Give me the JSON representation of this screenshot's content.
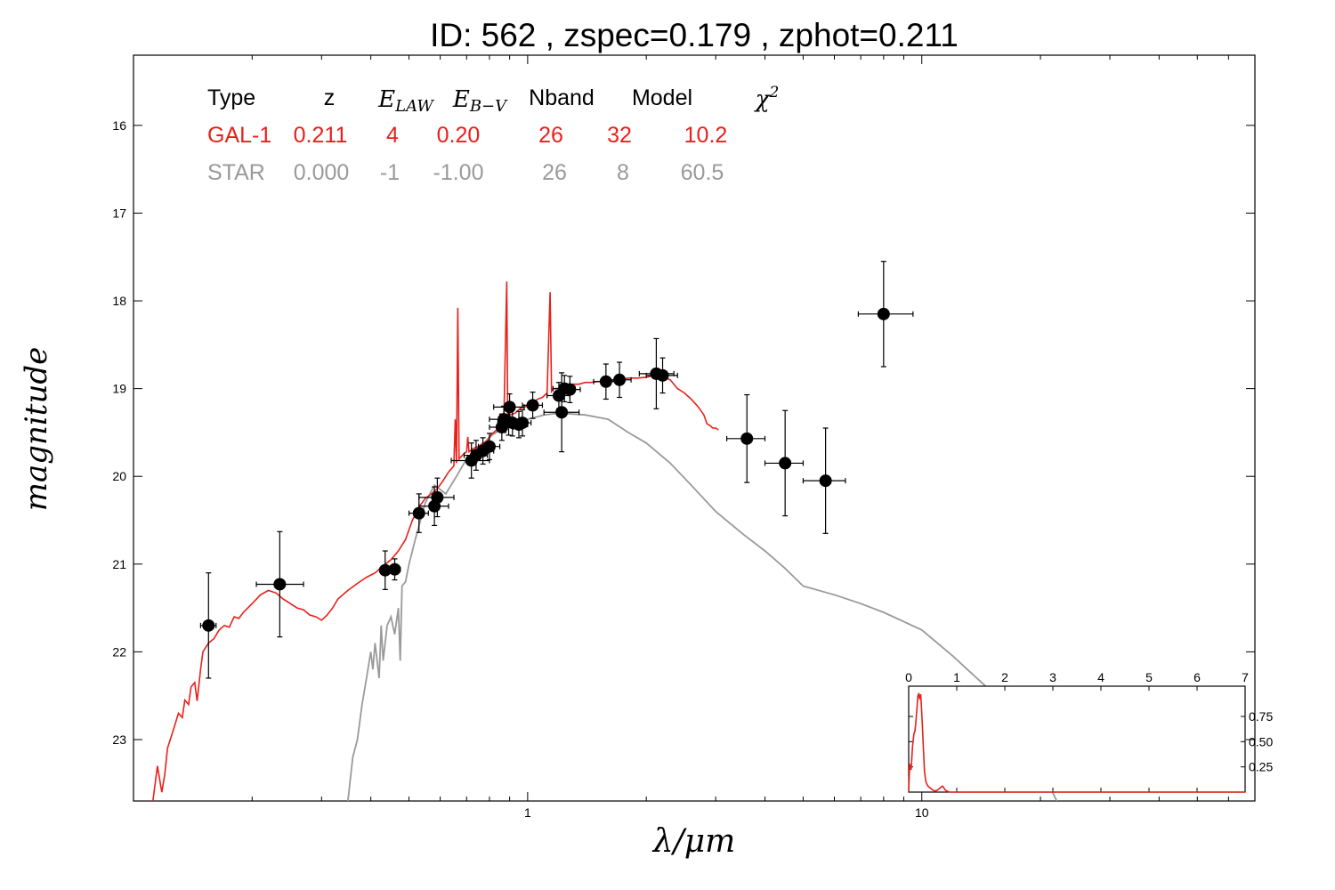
{
  "chart_data": {
    "type": "scatter",
    "title": "ID:  562   , zspec=0.179 , zphot=0.211",
    "xlabel": "λ/μm",
    "ylabel": "magnitude",
    "xscale": "log",
    "xlim": [
      0.1,
      70
    ],
    "ylim": [
      23.7,
      15.2
    ],
    "y_inverted": true,
    "x_tick_labels": [
      {
        "value": 1,
        "label": "1"
      },
      {
        "value": 10,
        "label": "10"
      }
    ],
    "y_tick_labels": [
      "16",
      "17",
      "18",
      "19",
      "20",
      "21",
      "22",
      "23"
    ],
    "legend_table": {
      "headers": [
        "Type",
        "z",
        "E_LAW",
        "E_B−V",
        "Nband",
        "Model",
        "χ²"
      ],
      "rows": [
        {
          "type": "GAL-1",
          "z": "0.211",
          "elaw": "4",
          "ebv": "0.20",
          "nband": "26",
          "model": "32",
          "chi2": "10.2",
          "color": "#e8201a"
        },
        {
          "type": "STAR",
          "z": "0.000",
          "elaw": "-1",
          "ebv": "-1.00",
          "nband": "26",
          "model": "8",
          "chi2": "60.5",
          "color": "#9a9a9a"
        }
      ]
    },
    "points": [
      {
        "x": 0.155,
        "y": 21.7,
        "xerr": [
          0.148,
          0.162
        ],
        "yerr": 0.6
      },
      {
        "x": 0.235,
        "y": 21.23,
        "xerr": [
          0.205,
          0.27
        ],
        "yerr": 0.6
      },
      {
        "x": 0.435,
        "y": 21.07,
        "xerr": [
          0.425,
          0.445
        ],
        "yerr": 0.22
      },
      {
        "x": 0.46,
        "y": 21.06,
        "xerr": [
          0.45,
          0.475
        ],
        "yerr": 0.12
      },
      {
        "x": 0.53,
        "y": 20.42,
        "xerr": [
          0.5,
          0.56
        ],
        "yerr": 0.22
      },
      {
        "x": 0.58,
        "y": 20.34,
        "xerr": [
          0.53,
          0.63
        ],
        "yerr": 0.22
      },
      {
        "x": 0.59,
        "y": 20.24,
        "xerr": [
          0.53,
          0.65
        ],
        "yerr": 0.22
      },
      {
        "x": 0.72,
        "y": 19.82,
        "xerr": [
          0.64,
          0.8
        ],
        "yerr": 0.2
      },
      {
        "x": 0.74,
        "y": 19.76,
        "xerr": [
          0.69,
          0.79
        ],
        "yerr": 0.17
      },
      {
        "x": 0.77,
        "y": 19.71,
        "xerr": [
          0.72,
          0.82
        ],
        "yerr": 0.15
      },
      {
        "x": 0.8,
        "y": 19.66,
        "xerr": [
          0.75,
          0.85
        ],
        "yerr": 0.15
      },
      {
        "x": 0.86,
        "y": 19.44,
        "xerr": [
          0.8,
          0.92
        ],
        "yerr": 0.15
      },
      {
        "x": 0.87,
        "y": 19.35,
        "xerr": [
          0.8,
          0.95
        ],
        "yerr": 0.15
      },
      {
        "x": 0.895,
        "y": 19.38,
        "xerr": [
          0.84,
          0.95
        ],
        "yerr": 0.15
      },
      {
        "x": 0.9,
        "y": 19.21,
        "xerr": [
          0.82,
          0.98
        ],
        "yerr": 0.15
      },
      {
        "x": 0.915,
        "y": 19.39,
        "xerr": [
          0.87,
          0.96
        ],
        "yerr": 0.15
      },
      {
        "x": 0.95,
        "y": 19.41,
        "xerr": [
          0.9,
          1.0
        ],
        "yerr": 0.15
      },
      {
        "x": 0.97,
        "y": 19.39,
        "xerr": [
          0.92,
          1.02
        ],
        "yerr": 0.15
      },
      {
        "x": 1.03,
        "y": 19.19,
        "xerr": [
          0.97,
          1.09
        ],
        "yerr": 0.15
      },
      {
        "x": 1.2,
        "y": 19.08,
        "xerr": [
          1.12,
          1.28
        ],
        "yerr": 0.15
      },
      {
        "x": 1.22,
        "y": 19.27,
        "xerr": [
          1.1,
          1.35
        ],
        "yerr": 0.45
      },
      {
        "x": 1.24,
        "y": 19.0,
        "xerr": [
          1.16,
          1.32
        ],
        "yerr": 0.15
      },
      {
        "x": 1.28,
        "y": 19.01,
        "xerr": [
          1.2,
          1.36
        ],
        "yerr": 0.15
      },
      {
        "x": 1.58,
        "y": 18.92,
        "xerr": [
          1.47,
          1.7
        ],
        "yerr": 0.2
      },
      {
        "x": 1.71,
        "y": 18.9,
        "xerr": [
          1.6,
          1.83
        ],
        "yerr": 0.2
      },
      {
        "x": 2.12,
        "y": 18.83,
        "xerr": [
          1.92,
          2.35
        ],
        "yerr": 0.4
      },
      {
        "x": 2.2,
        "y": 18.85,
        "xerr": [
          2.0,
          2.4
        ],
        "yerr": 0.2
      },
      {
        "x": 3.6,
        "y": 19.57,
        "xerr": [
          3.2,
          4.0
        ],
        "yerr": 0.5
      },
      {
        "x": 4.5,
        "y": 19.85,
        "xerr": [
          4.0,
          5.0
        ],
        "yerr": 0.6
      },
      {
        "x": 5.7,
        "y": 20.05,
        "xerr": [
          5.0,
          6.4
        ],
        "yerr": 0.6
      },
      {
        "x": 8.0,
        "y": 18.15,
        "xerr": [
          6.9,
          9.5
        ],
        "yerr": 0.6
      }
    ],
    "series": [
      {
        "color": "#e8201a",
        "x": [
          0.112,
          0.115,
          0.118,
          0.12,
          0.122,
          0.125,
          0.128,
          0.13,
          0.133,
          0.135,
          0.138,
          0.14,
          0.143,
          0.145,
          0.148,
          0.15,
          0.155,
          0.16,
          0.165,
          0.17,
          0.175,
          0.18,
          0.185,
          0.19,
          0.2,
          0.21,
          0.22,
          0.23,
          0.24,
          0.25,
          0.26,
          0.27,
          0.28,
          0.29,
          0.3,
          0.31,
          0.32,
          0.33,
          0.35,
          0.37,
          0.39,
          0.41,
          0.43,
          0.45,
          0.47,
          0.49,
          0.51,
          0.53,
          0.55,
          0.57,
          0.59,
          0.61,
          0.63,
          0.65,
          0.655,
          0.66,
          0.665,
          0.67,
          0.69,
          0.7,
          0.705,
          0.71,
          0.73,
          0.75,
          0.77,
          0.79,
          0.81,
          0.83,
          0.85,
          0.87,
          0.885,
          0.89,
          0.895,
          0.9,
          0.93,
          0.96,
          1.0,
          1.03,
          1.06,
          1.09,
          1.12,
          1.14,
          1.15,
          1.16,
          1.18,
          1.2,
          1.22,
          1.25,
          1.28,
          1.3,
          1.35,
          1.4,
          1.45,
          1.5,
          1.55,
          1.6,
          1.7,
          1.8,
          1.9,
          2.0,
          2.1,
          2.2,
          2.3,
          2.4,
          2.5,
          2.6,
          2.7,
          2.8,
          2.85,
          2.9,
          2.95,
          3.0,
          3.05
        ],
        "y": [
          23.7,
          23.3,
          23.6,
          23.4,
          23.1,
          22.95,
          22.8,
          22.7,
          22.75,
          22.55,
          22.6,
          22.4,
          22.35,
          22.56,
          22.2,
          22.0,
          21.9,
          21.85,
          21.75,
          21.7,
          21.72,
          21.6,
          21.62,
          21.55,
          21.45,
          21.35,
          21.3,
          21.33,
          21.4,
          21.45,
          21.5,
          21.52,
          21.58,
          21.6,
          21.64,
          21.58,
          21.5,
          21.4,
          21.3,
          21.22,
          21.15,
          21.1,
          21.02,
          20.95,
          20.85,
          20.72,
          20.5,
          20.35,
          20.25,
          20.2,
          20.14,
          20.05,
          19.95,
          19.88,
          19.35,
          19.85,
          18.08,
          19.8,
          19.74,
          19.72,
          19.55,
          19.72,
          19.68,
          19.66,
          19.62,
          19.6,
          19.52,
          19.48,
          19.44,
          19.38,
          17.78,
          19.36,
          19.34,
          19.3,
          19.28,
          19.22,
          19.2,
          19.16,
          19.12,
          19.1,
          19.05,
          17.9,
          19.03,
          19.0,
          19.0,
          19.0,
          18.98,
          18.98,
          18.98,
          18.95,
          18.95,
          18.93,
          18.93,
          18.92,
          18.92,
          18.92,
          18.9,
          18.88,
          18.88,
          18.87,
          18.85,
          18.87,
          18.9,
          19.0,
          19.05,
          19.12,
          19.2,
          19.3,
          19.4,
          19.42,
          19.45,
          19.45,
          19.47
        ]
      },
      {
        "color": "#9a9a9a",
        "x": [
          0.35,
          0.36,
          0.37,
          0.38,
          0.39,
          0.4,
          0.405,
          0.41,
          0.42,
          0.425,
          0.43,
          0.44,
          0.45,
          0.46,
          0.47,
          0.475,
          0.48,
          0.49,
          0.5,
          0.52,
          0.55,
          0.58,
          0.62,
          0.66,
          0.7,
          0.75,
          0.8,
          0.9,
          1.0,
          1.1,
          1.2,
          1.4,
          1.6,
          1.8,
          2.0,
          2.3,
          2.6,
          3.0,
          3.5,
          4.0,
          4.5,
          5.0,
          6.0,
          7.0,
          8.0,
          10.0,
          12.0,
          15.0,
          18.0,
          22.0
        ],
        "y": [
          23.7,
          23.2,
          23.0,
          22.6,
          22.3,
          22.0,
          22.2,
          21.9,
          22.3,
          21.7,
          22.1,
          21.7,
          21.6,
          21.8,
          21.5,
          22.1,
          21.25,
          21.2,
          21.0,
          20.7,
          20.3,
          20.1,
          20.2,
          20.0,
          19.8,
          19.7,
          19.55,
          19.4,
          19.35,
          19.3,
          19.28,
          19.3,
          19.35,
          19.5,
          19.62,
          19.85,
          20.1,
          20.4,
          20.65,
          20.85,
          21.05,
          21.25,
          21.35,
          21.45,
          21.55,
          21.75,
          22.05,
          22.45,
          22.9,
          23.7
        ]
      }
    ],
    "inset": {
      "xlim": [
        0,
        7
      ],
      "ylim": [
        0,
        1.05
      ],
      "x_tick_labels": [
        "0",
        "1",
        "2",
        "3",
        "4",
        "5",
        "6",
        "7"
      ],
      "y_tick_labels": [
        {
          "value": 0.25,
          "label": "0.25"
        },
        {
          "value": 0.5,
          "label": "0.50"
        },
        {
          "value": 0.75,
          "label": "0.75"
        }
      ],
      "pdf": {
        "color": "#e8201a",
        "x": [
          0.0,
          0.02,
          0.05,
          0.08,
          0.11,
          0.13,
          0.15,
          0.17,
          0.19,
          0.21,
          0.23,
          0.25,
          0.27,
          0.29,
          0.31,
          0.33,
          0.36,
          0.4,
          0.45,
          0.5,
          0.55,
          0.6,
          0.65,
          0.7,
          0.72,
          0.76,
          0.8,
          0.85,
          0.9,
          1.0,
          1.5,
          3.0,
          5.0,
          7.0
        ],
        "y": [
          0.0,
          0.28,
          0.22,
          0.45,
          0.58,
          0.6,
          0.7,
          0.82,
          0.95,
          0.98,
          0.92,
          0.97,
          0.8,
          0.6,
          0.4,
          0.2,
          0.1,
          0.06,
          0.04,
          0.02,
          0.01,
          0.02,
          0.04,
          0.06,
          0.05,
          0.02,
          0.01,
          0.0,
          0.0,
          0.0,
          0.0,
          0.0,
          0.0,
          0.0
        ]
      }
    }
  }
}
